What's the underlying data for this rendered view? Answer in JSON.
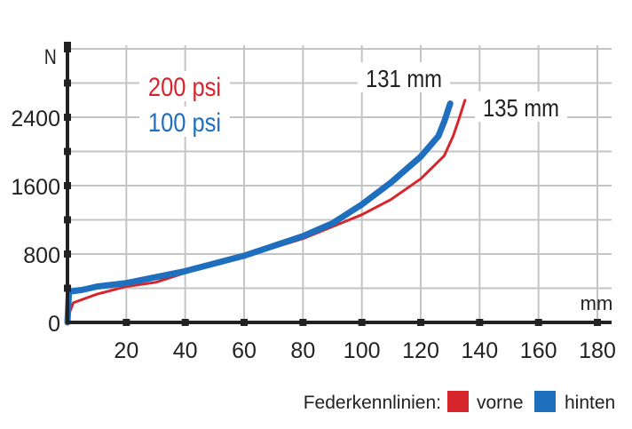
{
  "chart_data": {
    "type": "line",
    "xlabel": "mm",
    "ylabel": "N",
    "xlim": [
      0,
      180
    ],
    "ylim": [
      0,
      3200
    ],
    "x_ticks": [
      20,
      40,
      60,
      80,
      100,
      120,
      140,
      160,
      180
    ],
    "y_ticks": [
      0,
      800,
      1600,
      2400
    ],
    "y_grid_step": 400,
    "grid": true,
    "series": [
      {
        "name": "vorne",
        "pressure_label": "200 psi",
        "end_label": "135 mm",
        "color": "#d7262b",
        "x": [
          0,
          0.5,
          2,
          10,
          20,
          30,
          40,
          60,
          80,
          100,
          110,
          120,
          128,
          131,
          133,
          135
        ],
        "y": [
          0,
          100,
          230,
          330,
          420,
          470,
          580,
          770,
          980,
          1260,
          1440,
          1680,
          1950,
          2180,
          2380,
          2600
        ]
      },
      {
        "name": "hinten",
        "pressure_label": "100 psi",
        "end_label": "131 mm",
        "color": "#1f6fbf",
        "x": [
          0,
          0.5,
          5,
          10,
          20,
          40,
          60,
          80,
          90,
          100,
          110,
          120,
          126,
          128,
          130
        ],
        "y": [
          0,
          360,
          380,
          420,
          460,
          600,
          780,
          1010,
          1160,
          1380,
          1640,
          1940,
          2180,
          2350,
          2560
        ]
      }
    ],
    "legend": {
      "title": "Federkennlinien:",
      "placement": "bottom-right"
    }
  }
}
